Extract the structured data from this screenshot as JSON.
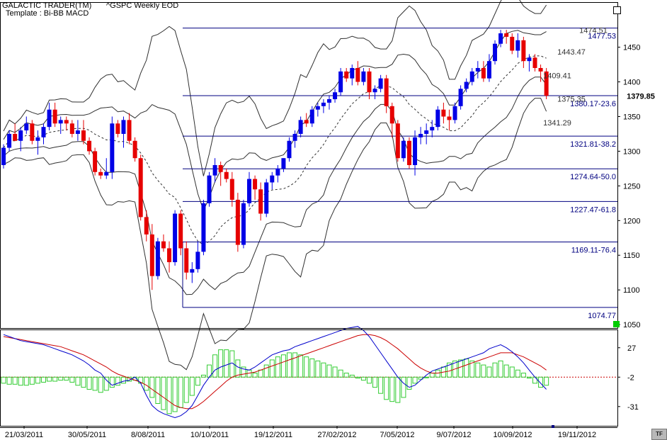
{
  "header": {
    "app_title": "GALACTIC TRADER(TM)",
    "symbol": "^GSPC Weekly EOD",
    "template": "Template : Bi-BB MACD"
  },
  "buttons": {
    "tf_label": "TF"
  },
  "colors": {
    "up": "#0000e6",
    "down": "#e60000",
    "fib": "#000080",
    "band": "#303030",
    "hist": "#33cc33",
    "macd": "#0000cc",
    "signal": "#cc0000",
    "marker": "#00cc00",
    "last_box": "#000000"
  },
  "chart_data": [
    {
      "type": "candlestick",
      "title": "^GSPC Weekly EOD",
      "xlabel": "",
      "ylabel": "",
      "ylim": [
        1045,
        1515
      ],
      "y_ticks": [
        1050,
        1100,
        1150,
        1200,
        1250,
        1300,
        1350,
        1400,
        1450
      ],
      "x_tick_labels": [
        "21/03/2011",
        "30/05/2011",
        "8/08/2011",
        "10/10/2011",
        "19/12/2011",
        "27/02/2012",
        "7/05/2012",
        "9/07/2012",
        "10/09/2012",
        "19/11/2012"
      ],
      "last_price": 1379.85,
      "fib_levels": [
        {
          "value": 1477.53,
          "label": "1477.53"
        },
        {
          "value": 1380.17,
          "label": "1380.17-23.6"
        },
        {
          "value": 1321.81,
          "label": "1321.81-38.2"
        },
        {
          "value": 1274.64,
          "label": "1274.64-50.0"
        },
        {
          "value": 1227.47,
          "label": "1227.47-61.8"
        },
        {
          "value": 1169.11,
          "label": "1169.11-76.4"
        },
        {
          "value": 1074.77,
          "label": "1074.77"
        }
      ],
      "annotations": [
        {
          "value": 1474.51,
          "text": "1474.51"
        },
        {
          "value": 1443.47,
          "text": "1443.47"
        },
        {
          "value": 1409.41,
          "text": "1409.41"
        },
        {
          "value": 1375.35,
          "text": "1375.35"
        },
        {
          "value": 1341.29,
          "text": "1341.29"
        }
      ],
      "candles": [
        [
          1280,
          1310,
          1275,
          1305
        ],
        [
          1305,
          1330,
          1300,
          1325
        ],
        [
          1325,
          1340,
          1315,
          1315
        ],
        [
          1315,
          1335,
          1300,
          1330
        ],
        [
          1330,
          1350,
          1325,
          1340
        ],
        [
          1340,
          1345,
          1310,
          1315
        ],
        [
          1315,
          1330,
          1295,
          1320
        ],
        [
          1320,
          1340,
          1310,
          1335
        ],
        [
          1335,
          1370,
          1330,
          1360
        ],
        [
          1360,
          1370,
          1335,
          1340
        ],
        [
          1340,
          1350,
          1325,
          1345
        ],
        [
          1345,
          1350,
          1330,
          1340
        ],
        [
          1340,
          1345,
          1320,
          1325
        ],
        [
          1325,
          1345,
          1315,
          1330
        ],
        [
          1330,
          1345,
          1310,
          1315
        ],
        [
          1315,
          1320,
          1295,
          1300
        ],
        [
          1300,
          1305,
          1265,
          1270
        ],
        [
          1270,
          1275,
          1260,
          1265
        ],
        [
          1265,
          1290,
          1260,
          1270
        ],
        [
          1270,
          1350,
          1260,
          1340
        ],
        [
          1340,
          1345,
          1320,
          1325
        ],
        [
          1325,
          1350,
          1305,
          1345
        ],
        [
          1345,
          1355,
          1310,
          1315
        ],
        [
          1315,
          1320,
          1285,
          1290
        ],
        [
          1290,
          1295,
          1200,
          1205
        ],
        [
          1205,
          1215,
          1170,
          1180
        ],
        [
          1180,
          1195,
          1100,
          1120
        ],
        [
          1120,
          1175,
          1115,
          1170
        ],
        [
          1170,
          1180,
          1155,
          1160
        ],
        [
          1160,
          1170,
          1125,
          1140
        ],
        [
          1140,
          1215,
          1135,
          1210
        ],
        [
          1210,
          1215,
          1150,
          1160
        ],
        [
          1160,
          1170,
          1115,
          1125
        ],
        [
          1125,
          1140,
          1110,
          1130
        ],
        [
          1130,
          1170,
          1125,
          1155
        ],
        [
          1155,
          1230,
          1150,
          1225
        ],
        [
          1225,
          1270,
          1220,
          1265
        ],
        [
          1265,
          1290,
          1255,
          1280
        ],
        [
          1280,
          1285,
          1250,
          1270
        ],
        [
          1270,
          1275,
          1255,
          1260
        ],
        [
          1260,
          1270,
          1220,
          1230
        ],
        [
          1230,
          1240,
          1155,
          1165
        ],
        [
          1165,
          1230,
          1160,
          1225
        ],
        [
          1225,
          1270,
          1220,
          1260
        ],
        [
          1260,
          1265,
          1230,
          1245
        ],
        [
          1245,
          1255,
          1200,
          1210
        ],
        [
          1210,
          1260,
          1205,
          1255
        ],
        [
          1255,
          1270,
          1245,
          1265
        ],
        [
          1265,
          1280,
          1255,
          1275
        ],
        [
          1275,
          1290,
          1270,
          1290
        ],
        [
          1290,
          1320,
          1285,
          1315
        ],
        [
          1315,
          1330,
          1305,
          1325
        ],
        [
          1325,
          1350,
          1320,
          1345
        ],
        [
          1345,
          1355,
          1335,
          1340
        ],
        [
          1340,
          1365,
          1335,
          1360
        ],
        [
          1360,
          1370,
          1350,
          1365
        ],
        [
          1365,
          1375,
          1355,
          1370
        ],
        [
          1370,
          1380,
          1360,
          1375
        ],
        [
          1375,
          1390,
          1370,
          1385
        ],
        [
          1385,
          1420,
          1380,
          1415
        ],
        [
          1415,
          1420,
          1400,
          1405
        ],
        [
          1405,
          1425,
          1395,
          1420
        ],
        [
          1420,
          1430,
          1395,
          1400
        ],
        [
          1400,
          1420,
          1395,
          1415
        ],
        [
          1415,
          1420,
          1375,
          1385
        ],
        [
          1385,
          1395,
          1375,
          1390
        ],
        [
          1390,
          1410,
          1385,
          1405
        ],
        [
          1405,
          1410,
          1355,
          1365
        ],
        [
          1365,
          1370,
          1320,
          1340
        ],
        [
          1340,
          1345,
          1285,
          1290
        ],
        [
          1290,
          1320,
          1285,
          1315
        ],
        [
          1315,
          1320,
          1275,
          1280
        ],
        [
          1280,
          1330,
          1265,
          1320
        ],
        [
          1320,
          1335,
          1310,
          1325
        ],
        [
          1325,
          1340,
          1310,
          1330
        ],
        [
          1330,
          1345,
          1320,
          1335
        ],
        [
          1335,
          1365,
          1330,
          1360
        ],
        [
          1360,
          1370,
          1340,
          1350
        ],
        [
          1350,
          1360,
          1330,
          1345
        ],
        [
          1345,
          1370,
          1340,
          1365
        ],
        [
          1365,
          1395,
          1360,
          1390
        ],
        [
          1390,
          1405,
          1385,
          1400
        ],
        [
          1400,
          1420,
          1395,
          1415
        ],
        [
          1415,
          1430,
          1405,
          1420
        ],
        [
          1420,
          1430,
          1400,
          1405
        ],
        [
          1405,
          1440,
          1400,
          1430
        ],
        [
          1430,
          1460,
          1425,
          1455
        ],
        [
          1455,
          1475,
          1450,
          1470
        ],
        [
          1470,
          1475,
          1455,
          1465
        ],
        [
          1465,
          1470,
          1440,
          1445
        ],
        [
          1445,
          1470,
          1435,
          1460
        ],
        [
          1460,
          1465,
          1420,
          1430
        ],
        [
          1430,
          1440,
          1415,
          1435
        ],
        [
          1435,
          1440,
          1415,
          1420
        ],
        [
          1420,
          1425,
          1400,
          1415
        ],
        [
          1415,
          1420,
          1375,
          1380
        ]
      ]
    },
    {
      "type": "bar+line",
      "title": "",
      "xlabel": "",
      "ylabel": "",
      "ylim": [
        -50,
        45
      ],
      "y_ticks": [
        27,
        -2,
        -31
      ],
      "series": [
        {
          "name": "",
          "values": [
            -8,
            -9,
            -9,
            -10,
            -10,
            -9,
            -8,
            -7,
            -6,
            -6,
            -5,
            -5,
            -7,
            -10,
            -12,
            -14,
            -15,
            -17,
            -15,
            -12,
            -10,
            -8,
            -6,
            -5,
            -8,
            -15,
            -22,
            -28,
            -34,
            -38,
            -36,
            -32,
            -27,
            -20,
            -10,
            0,
            10,
            20,
            25,
            25,
            24,
            15,
            8,
            5,
            2,
            5,
            10,
            15,
            18,
            20,
            22,
            22,
            20,
            18,
            16,
            14,
            12,
            10,
            8,
            5,
            2,
            0,
            -3,
            -5,
            -8,
            -12,
            -18,
            -24,
            -26,
            -27,
            -22,
            -14,
            -8,
            -4,
            -2,
            2,
            5,
            8,
            12,
            14,
            15,
            16,
            14,
            12,
            10,
            8,
            12,
            14,
            10,
            8,
            5,
            2,
            -3,
            -8,
            -12,
            -10
          ]
        },
        {
          "name": "",
          "values": [
            40,
            38,
            36,
            34,
            33,
            32,
            31,
            30,
            28,
            26,
            24,
            22,
            20,
            17,
            14,
            10,
            5,
            2,
            -5,
            -10,
            -8,
            -6,
            -5,
            -2,
            -8,
            -20,
            -30,
            -35,
            -38,
            -40,
            -42,
            -40,
            -36,
            -30,
            -20,
            -10,
            -2,
            5,
            8,
            10,
            12,
            8,
            6,
            5,
            8,
            12,
            16,
            20,
            22,
            24,
            25,
            28,
            30,
            32,
            34,
            36,
            38,
            40,
            42,
            44,
            46,
            47,
            48,
            44,
            38,
            30,
            22,
            14,
            6,
            -2,
            -8,
            -12,
            -10,
            -5,
            0,
            4,
            6,
            8,
            10,
            12,
            14,
            16,
            18,
            20,
            22,
            26,
            28,
            30,
            27,
            23,
            18,
            12,
            5,
            -2,
            -8,
            -14
          ]
        },
        {
          "name": "",
          "values": [
            38,
            37,
            36,
            35,
            34,
            33,
            32,
            31,
            30,
            29,
            28,
            26,
            24,
            22,
            20,
            17,
            14,
            11,
            8,
            4,
            1,
            -1,
            -3,
            -5,
            -7,
            -10,
            -14,
            -18,
            -22,
            -26,
            -30,
            -32,
            -33,
            -33,
            -30,
            -26,
            -21,
            -16,
            -11,
            -6,
            -2,
            0,
            1,
            2,
            3,
            5,
            7,
            9,
            11,
            13,
            15,
            17,
            19,
            21,
            23,
            25,
            27,
            29,
            31,
            33,
            35,
            37,
            39,
            40,
            40,
            39,
            37,
            34,
            30,
            26,
            21,
            16,
            11,
            7,
            4,
            2,
            2,
            3,
            4,
            6,
            8,
            10,
            12,
            14,
            16,
            18,
            20,
            22,
            22,
            22,
            20,
            18,
            15,
            12,
            9,
            5
          ]
        }
      ]
    }
  ]
}
